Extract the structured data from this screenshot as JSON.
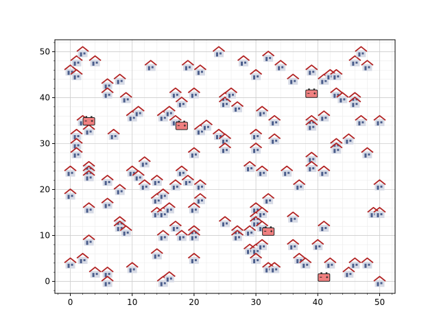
{
  "chart_data": {
    "type": "scatter",
    "title": "",
    "xlabel": "",
    "ylabel": "",
    "xlim": [
      -2.5,
      52.5
    ],
    "ylim": [
      -2.6,
      52.6
    ],
    "xticks": [
      0,
      10,
      20,
      30,
      40,
      50
    ],
    "yticks": [
      0,
      10,
      20,
      30,
      40,
      50
    ],
    "grid": "major and minor",
    "legend": "none",
    "colors": {
      "roof": "#b22222",
      "house_body": "#d7dbe6",
      "house_door": "#4b5e8c",
      "battery_fill": "#f08080",
      "battery_stroke": "#222222",
      "major_grid": "#cccccc",
      "minor_grid": "#ebebeb"
    },
    "series": [
      {
        "marker": "house-icon",
        "points": [
          [
            0,
            46
          ],
          [
            1,
            48
          ],
          [
            1,
            45
          ],
          [
            2,
            50
          ],
          [
            4,
            48
          ],
          [
            6,
            43
          ],
          [
            6,
            41
          ],
          [
            8,
            44
          ],
          [
            9,
            40
          ],
          [
            10,
            36
          ],
          [
            11,
            37
          ],
          [
            13,
            47
          ],
          [
            15,
            36
          ],
          [
            16,
            37
          ],
          [
            17,
            41
          ],
          [
            18,
            39
          ],
          [
            19,
            47
          ],
          [
            20,
            41
          ],
          [
            21,
            46
          ],
          [
            24,
            50
          ],
          [
            25,
            40
          ],
          [
            25,
            39
          ],
          [
            26,
            41
          ],
          [
            27,
            38
          ],
          [
            28,
            48
          ],
          [
            30,
            45
          ],
          [
            31,
            37
          ],
          [
            32,
            49
          ],
          [
            34,
            47
          ],
          [
            36,
            44
          ],
          [
            39,
            46
          ],
          [
            41,
            44
          ],
          [
            42,
            45
          ],
          [
            43,
            45
          ],
          [
            43,
            41
          ],
          [
            44,
            40
          ],
          [
            46,
            48
          ],
          [
            46,
            40
          ],
          [
            46,
            39
          ],
          [
            47,
            50
          ],
          [
            48,
            47
          ],
          [
            1,
            32
          ],
          [
            1,
            30
          ],
          [
            1,
            28
          ],
          [
            2,
            35
          ],
          [
            3,
            33
          ],
          [
            7,
            32
          ],
          [
            17,
            35
          ],
          [
            21,
            33
          ],
          [
            22,
            34
          ],
          [
            24,
            32
          ],
          [
            25,
            31
          ],
          [
            25,
            29
          ],
          [
            30,
            32
          ],
          [
            30,
            29
          ],
          [
            33,
            35
          ],
          [
            33,
            31
          ],
          [
            39,
            35
          ],
          [
            39,
            34
          ],
          [
            41,
            36
          ],
          [
            43,
            30
          ],
          [
            43,
            29
          ],
          [
            45,
            31
          ],
          [
            47,
            35
          ],
          [
            48,
            28
          ],
          [
            50,
            35
          ],
          [
            0,
            24
          ],
          [
            0,
            19
          ],
          [
            3,
            25
          ],
          [
            3,
            24
          ],
          [
            3,
            23
          ],
          [
            6,
            22
          ],
          [
            8,
            20
          ],
          [
            10,
            24
          ],
          [
            11,
            23
          ],
          [
            12,
            26
          ],
          [
            12,
            21
          ],
          [
            14,
            22
          ],
          [
            14,
            18
          ],
          [
            15,
            19
          ],
          [
            17,
            21
          ],
          [
            18,
            24
          ],
          [
            19,
            22
          ],
          [
            20,
            28
          ],
          [
            21,
            21
          ],
          [
            21,
            18
          ],
          [
            29,
            25
          ],
          [
            31,
            24
          ],
          [
            35,
            24
          ],
          [
            37,
            21
          ],
          [
            39,
            27
          ],
          [
            39,
            25
          ],
          [
            41,
            24
          ],
          [
            50,
            21
          ],
          [
            3,
            16
          ],
          [
            6,
            17
          ],
          [
            8,
            13
          ],
          [
            8,
            12
          ],
          [
            9,
            11
          ],
          [
            14,
            15
          ],
          [
            15,
            15
          ],
          [
            16,
            16
          ],
          [
            15,
            10
          ],
          [
            17,
            12
          ],
          [
            18,
            10
          ],
          [
            20,
            16
          ],
          [
            20,
            11
          ],
          [
            20,
            10
          ],
          [
            25,
            13
          ],
          [
            27,
            11
          ],
          [
            27,
            10
          ],
          [
            29,
            11
          ],
          [
            30,
            16
          ],
          [
            30,
            14
          ],
          [
            30,
            13
          ],
          [
            31,
            15
          ],
          [
            31,
            12
          ],
          [
            32,
            18
          ],
          [
            36,
            14
          ],
          [
            41,
            12
          ],
          [
            49,
            15
          ],
          [
            50,
            15
          ],
          [
            3,
            9
          ],
          [
            0,
            4
          ],
          [
            2,
            5
          ],
          [
            4,
            2
          ],
          [
            6,
            2
          ],
          [
            6,
            0
          ],
          [
            10,
            3
          ],
          [
            14,
            6
          ],
          [
            15,
            0
          ],
          [
            16,
            1
          ],
          [
            20,
            5
          ],
          [
            29,
            7
          ],
          [
            30,
            7
          ],
          [
            30,
            5
          ],
          [
            31,
            8
          ],
          [
            32,
            3
          ],
          [
            33,
            3
          ],
          [
            36,
            8
          ],
          [
            37,
            5
          ],
          [
            38,
            4
          ],
          [
            40,
            8
          ],
          [
            42,
            4
          ],
          [
            45,
            2
          ],
          [
            46,
            4
          ],
          [
            48,
            4
          ],
          [
            50,
            0
          ]
        ]
      },
      {
        "marker": "battery-icon",
        "points": [
          [
            3,
            35
          ],
          [
            18,
            34
          ],
          [
            32,
            11
          ],
          [
            39,
            41
          ],
          [
            41,
            1
          ]
        ]
      }
    ]
  }
}
